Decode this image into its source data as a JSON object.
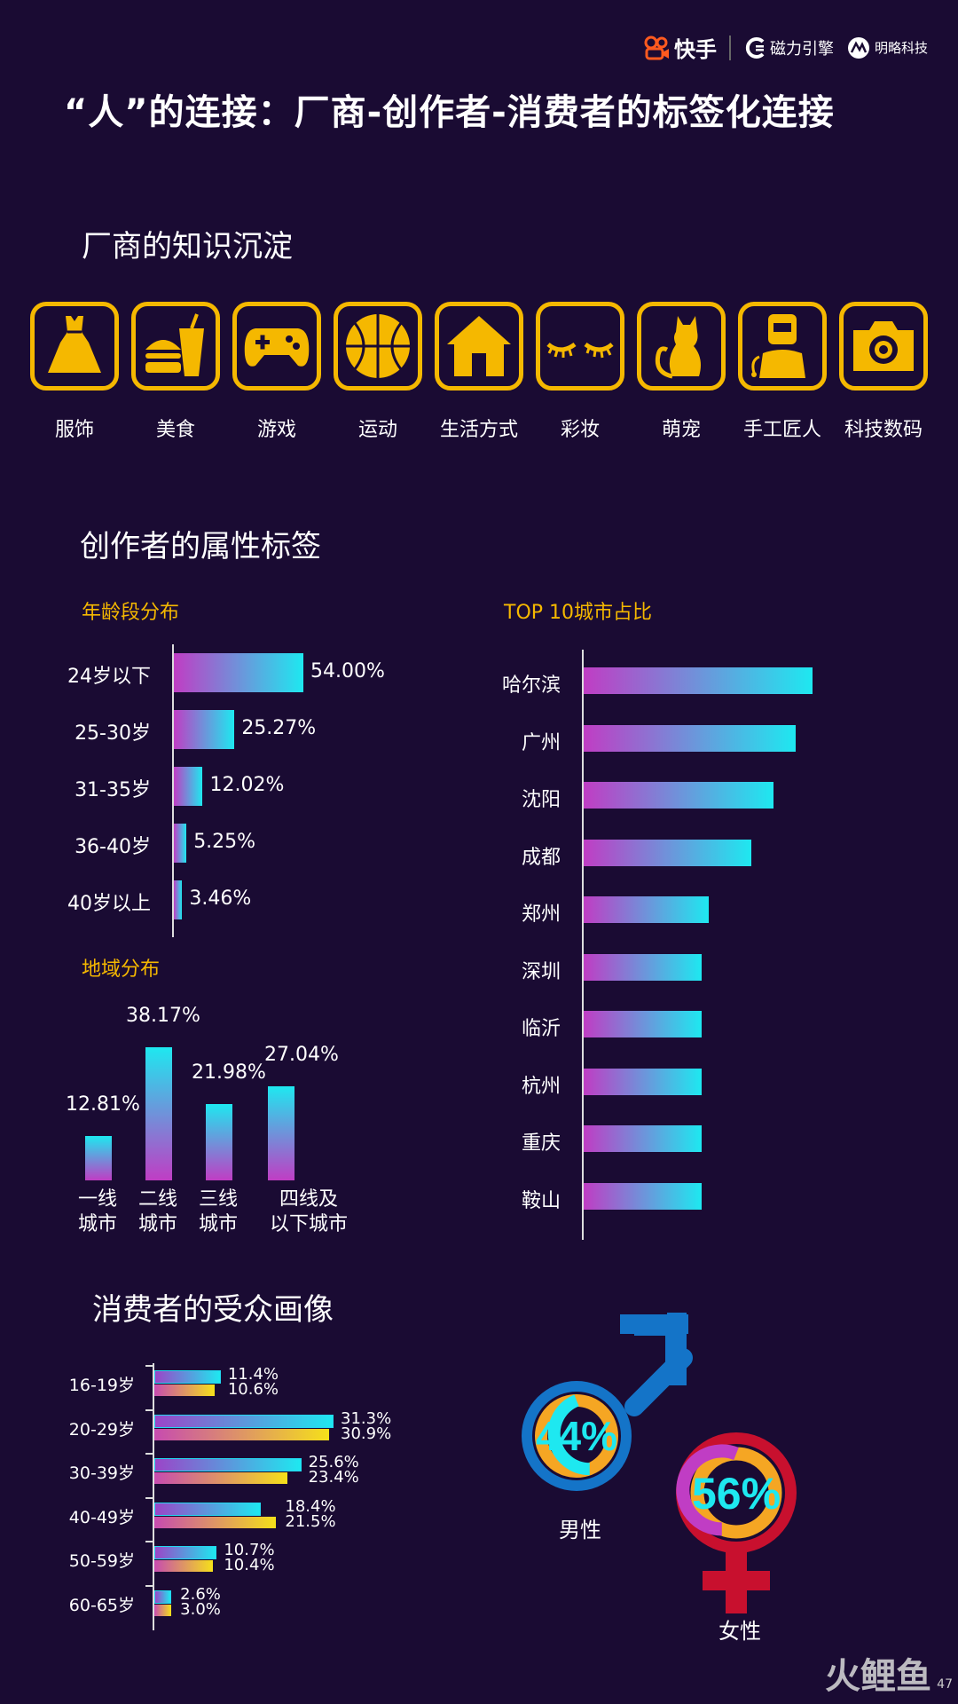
{
  "brand": {
    "kuaishou": "快手",
    "cili": "磁力引擎",
    "minglue": "明略科技"
  },
  "title": "“人”的连接：厂商-创作者-消费者的标签化连接",
  "sections": {
    "vendor": "厂商的知识沉淀",
    "creator": "创作者的属性标签",
    "consumer": "消费者的受众画像"
  },
  "icons": [
    {
      "name": "dress-icon",
      "label": "服饰"
    },
    {
      "name": "food-icon",
      "label": "美食"
    },
    {
      "name": "gamepad-icon",
      "label": "游戏"
    },
    {
      "name": "basketball-icon",
      "label": "运动"
    },
    {
      "name": "house-icon",
      "label": "生活方式"
    },
    {
      "name": "eyelash-icon",
      "label": "彩妆"
    },
    {
      "name": "cat-icon",
      "label": "萌宠"
    },
    {
      "name": "craftsman-icon",
      "label": "手工匠人"
    },
    {
      "name": "camera-icon",
      "label": "科技数码"
    }
  ],
  "colors": {
    "accent": "#f5b800",
    "bg": "#1a0b33",
    "cyan": "#1ee8f0",
    "magenta": "#c03dc4",
    "male_blue": "#1474c8",
    "female_red": "#c8102e"
  },
  "chart_data": [
    {
      "type": "bar",
      "orientation": "horizontal",
      "title": "年龄段分布",
      "categories": [
        "24岁以下",
        "25-30岁",
        "31-35岁",
        "36-40岁",
        "40岁以上"
      ],
      "values": [
        54.0,
        25.27,
        12.02,
        5.25,
        3.46
      ],
      "labels": [
        "54.00%",
        "25.27%",
        "12.02%",
        "5.25%",
        "3.46%"
      ]
    },
    {
      "type": "bar",
      "orientation": "horizontal",
      "title": "TOP 10城市占比",
      "categories": [
        "哈尔滨",
        "广州",
        "沈阳",
        "成都",
        "郑州",
        "深圳",
        "临沂",
        "杭州",
        "重庆",
        "鞍山"
      ],
      "values": [
        9.3,
        8.6,
        7.7,
        6.8,
        5.1,
        4.8,
        4.8,
        4.8,
        4.8,
        4.8
      ]
    },
    {
      "type": "bar",
      "orientation": "vertical",
      "title": "地域分布",
      "categories": [
        [
          "一线",
          "城市"
        ],
        [
          "二线",
          "城市"
        ],
        [
          "三线",
          "城市"
        ],
        [
          "四线及",
          "以下城市"
        ]
      ],
      "values": [
        12.81,
        38.17,
        21.98,
        27.04
      ],
      "labels": [
        "12.81%",
        "38.17%",
        "21.98%",
        "27.04%"
      ]
    },
    {
      "type": "bar",
      "orientation": "horizontal",
      "categories": [
        "16-19岁",
        "20-29岁",
        "30-39岁",
        "40-49岁",
        "50-59岁",
        "60-65岁"
      ],
      "series": [
        {
          "values": [
            11.4,
            31.3,
            25.6,
            18.4,
            10.7,
            2.6
          ],
          "labels": [
            "11.4%",
            "31.3%",
            "25.6%",
            "18.4%",
            "10.7%",
            "2.6%"
          ],
          "color": "#1ee8f0"
        },
        {
          "values": [
            10.6,
            30.9,
            23.4,
            21.5,
            10.4,
            3.0
          ],
          "labels": [
            "10.6%",
            "30.9%",
            "23.4%",
            "21.5%",
            "10.4%",
            "3.0%"
          ],
          "color": "#f5e01a"
        }
      ]
    },
    {
      "type": "pie",
      "categories": [
        "男性",
        "女性"
      ],
      "values": [
        44,
        56
      ],
      "labels": [
        "44%",
        "56%"
      ]
    }
  ],
  "watermark": {
    "text": "火鲤鱼",
    "page": "47"
  }
}
